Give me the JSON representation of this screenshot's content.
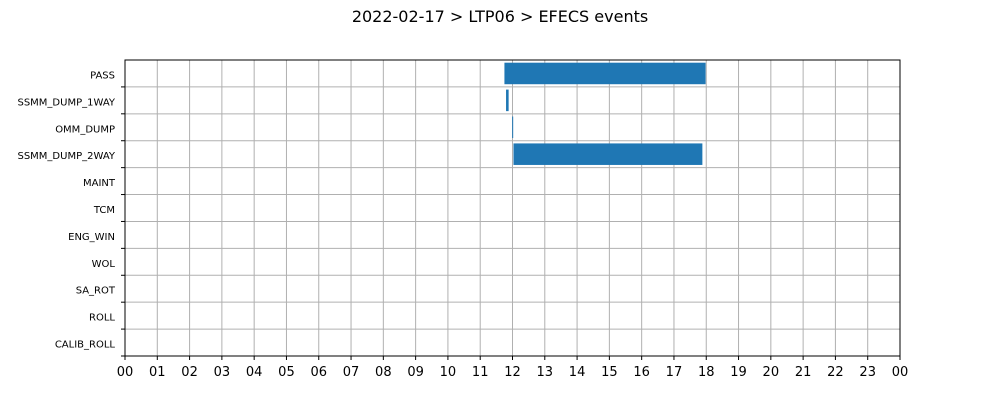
{
  "chart_data": {
    "type": "bar",
    "orientation": "horizontal-timeline",
    "title": "2022-02-17 > LTP06 > EFECS events",
    "xlabel": "",
    "ylabel": "",
    "x_unit": "hour of day",
    "xlim": [
      0,
      24
    ],
    "x_ticks": [
      "00",
      "01",
      "02",
      "03",
      "04",
      "05",
      "06",
      "07",
      "08",
      "09",
      "10",
      "11",
      "12",
      "13",
      "14",
      "15",
      "16",
      "17",
      "18",
      "19",
      "20",
      "21",
      "22",
      "23",
      "00"
    ],
    "categories": [
      "PASS",
      "SSMM_DUMP_1WAY",
      "OMM_DUMP",
      "SSMM_DUMP_2WAY",
      "MAINT",
      "TCM",
      "ENG_WIN",
      "WOL",
      "SA_ROT",
      "ROLL",
      "CALIB_ROLL"
    ],
    "grid": true,
    "bar_color": "#1f77b4",
    "series": [
      {
        "values": [
          {
            "category": "PASS",
            "start": 11.75,
            "end": 17.98
          },
          {
            "category": "SSMM_DUMP_1WAY",
            "start": 11.8,
            "end": 11.88
          },
          {
            "category": "OMM_DUMP",
            "start": 11.99,
            "end": 12.02
          },
          {
            "category": "SSMM_DUMP_2WAY",
            "start": 12.03,
            "end": 17.88
          }
        ]
      }
    ]
  }
}
